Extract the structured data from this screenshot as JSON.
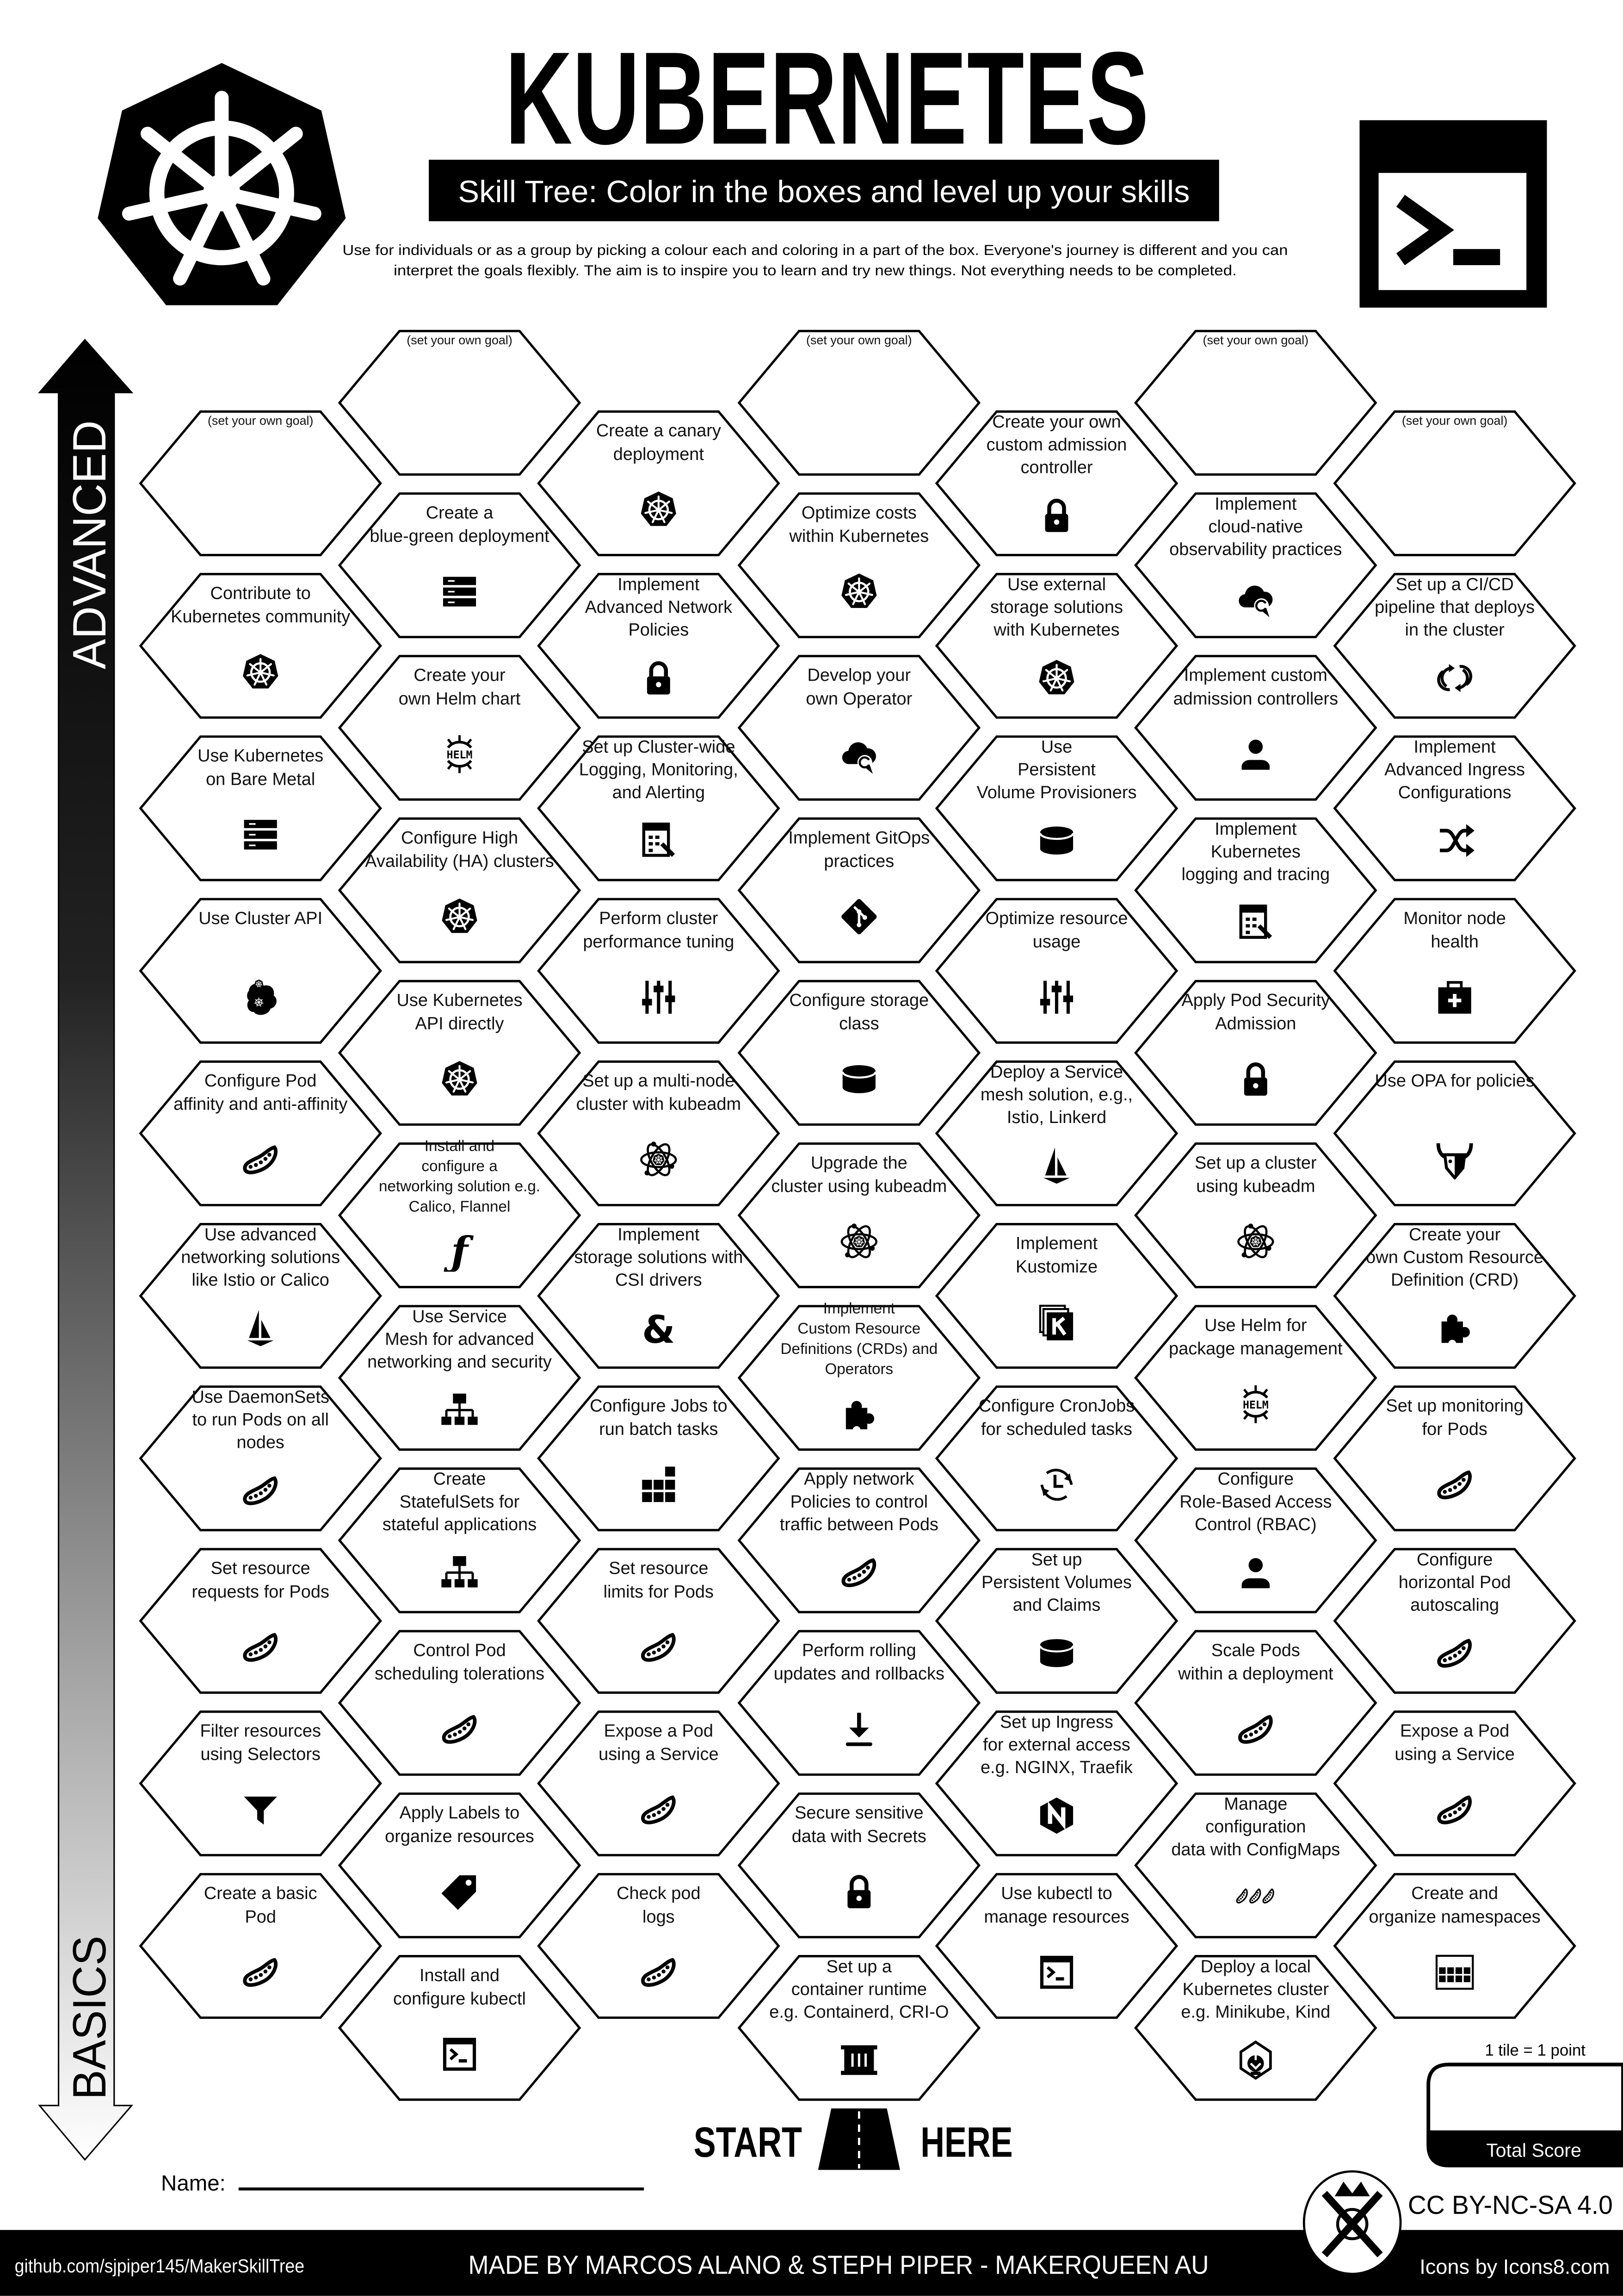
{
  "header": {
    "title": "KUBERNETES",
    "subtitle": "Skill Tree:  Color in the boxes and level up your skills",
    "description": [
      "Use for individuals or as a group by picking a colour each and coloring in a part of the box.  Everyone's journey is different and you can",
      "interpret the goals flexibly.  The aim is to inspire you to learn and try new things. Not everything needs to be completed."
    ],
    "logo_icon": "kubernetes-logo",
    "terminal_icon": "terminal"
  },
  "axis": {
    "top_label": "ADVANCED",
    "bottom_label": "BASICS"
  },
  "grid": {
    "columns": [
      [
        {
          "lines": [
            "(set your own goal)"
          ],
          "icon": "",
          "goal": true
        },
        {
          "lines": [
            "Contribute to",
            "Kubernetes community"
          ],
          "icon": "k8s"
        },
        {
          "lines": [
            "Use Kubernetes",
            "on Bare Metal"
          ],
          "icon": "server"
        },
        {
          "lines": [
            "Use Cluster API"
          ],
          "icon": "clusterapi"
        },
        {
          "lines": [
            "Configure Pod",
            "affinity and anti-affinity"
          ],
          "icon": "pea"
        },
        {
          "lines": [
            "Use advanced",
            "networking solutions",
            "like Istio or Calico"
          ],
          "icon": "sail"
        },
        {
          "lines": [
            "Use DaemonSets",
            "to run Pods on all",
            "nodes"
          ],
          "icon": "pea"
        },
        {
          "lines": [
            "Set resource",
            "requests for Pods"
          ],
          "icon": "pea"
        },
        {
          "lines": [
            "Filter resources",
            "using Selectors"
          ],
          "icon": "funnel"
        },
        {
          "lines": [
            "Create a basic",
            "Pod"
          ],
          "icon": "pea"
        }
      ],
      [
        {
          "lines": [
            "(set your own goal)"
          ],
          "icon": "",
          "goal": true
        },
        {
          "lines": [
            "Create a",
            "blue-green deployment"
          ],
          "icon": "server"
        },
        {
          "lines": [
            "Create your",
            "own Helm chart"
          ],
          "icon": "helm"
        },
        {
          "lines": [
            "Configure High",
            "Availability (HA) clusters"
          ],
          "icon": "k8s"
        },
        {
          "lines": [
            "Use Kubernetes",
            "API directly"
          ],
          "icon": "k8s"
        },
        {
          "lines": [
            "Install and",
            "configure a",
            "networking solution e.g.",
            "Calico, Flannel"
          ],
          "icon": "flannel"
        },
        {
          "lines": [
            "Use Service",
            "Mesh for advanced",
            "networking and security"
          ],
          "icon": "hierarchy"
        },
        {
          "lines": [
            "Create",
            "StatefulSets for",
            "stateful applications"
          ],
          "icon": "hierarchy"
        },
        {
          "lines": [
            "Control Pod",
            "scheduling tolerations"
          ],
          "icon": "pea"
        },
        {
          "lines": [
            "Apply Labels to",
            "organize resources"
          ],
          "icon": "tag"
        },
        {
          "lines": [
            "Install and",
            "configure kubectl"
          ],
          "icon": "terminal"
        }
      ],
      [
        {
          "lines": [
            "Create a canary",
            "deployment"
          ],
          "icon": "k8s"
        },
        {
          "lines": [
            "Implement",
            "Advanced Network",
            "Policies"
          ],
          "icon": "lock"
        },
        {
          "lines": [
            "Set up Cluster-wide",
            "Logging, Monitoring,",
            "and Alerting"
          ],
          "icon": "report"
        },
        {
          "lines": [
            "Perform cluster",
            "performance tuning"
          ],
          "icon": "sliders"
        },
        {
          "lines": [
            "Set up a multi-node",
            "cluster with kubeadm"
          ],
          "icon": "atom"
        },
        {
          "lines": [
            "Implement",
            "storage solutions with",
            "CSI drivers"
          ],
          "icon": "ceph"
        },
        {
          "lines": [
            "Configure Jobs to",
            "run batch tasks"
          ],
          "icon": "blocks"
        },
        {
          "lines": [
            "Set resource",
            "limits for Pods"
          ],
          "icon": "pea"
        },
        {
          "lines": [
            "Expose a Pod",
            "using a Service"
          ],
          "icon": "pea"
        },
        {
          "lines": [
            "Check pod",
            "logs"
          ],
          "icon": "pea"
        }
      ],
      [
        {
          "lines": [
            "(set your own goal)"
          ],
          "icon": "",
          "goal": true
        },
        {
          "lines": [
            "Optimize costs",
            "within Kubernetes"
          ],
          "icon": "k8s"
        },
        {
          "lines": [
            "Develop your",
            "own Operator"
          ],
          "icon": "cloud"
        },
        {
          "lines": [
            "Implement GitOps",
            "practices"
          ],
          "icon": "git"
        },
        {
          "lines": [
            "Configure storage",
            "class"
          ],
          "icon": "db"
        },
        {
          "lines": [
            "Upgrade the",
            "cluster using kubeadm"
          ],
          "icon": "atom"
        },
        {
          "lines": [
            "Implement",
            "Custom Resource",
            "Definitions (CRDs) and",
            "Operators"
          ],
          "icon": "puzzle"
        },
        {
          "lines": [
            "Apply network",
            "Policies to control",
            "traffic between Pods"
          ],
          "icon": "pea"
        },
        {
          "lines": [
            "Perform rolling",
            "updates and rollbacks"
          ],
          "icon": "download"
        },
        {
          "lines": [
            "Secure sensitive",
            "data with Secrets"
          ],
          "icon": "lock"
        },
        {
          "lines": [
            "Set up a",
            "container runtime",
            "e.g. Containerd, CRI-O"
          ],
          "icon": "container"
        }
      ],
      [
        {
          "lines": [
            "Create your own",
            "custom admission",
            "controller"
          ],
          "icon": "lock"
        },
        {
          "lines": [
            "Use external",
            "storage solutions",
            "with Kubernetes"
          ],
          "icon": "k8s"
        },
        {
          "lines": [
            "Use",
            "Persistent",
            "Volume Provisioners"
          ],
          "icon": "db"
        },
        {
          "lines": [
            "Optimize resource",
            "usage"
          ],
          "icon": "sliders"
        },
        {
          "lines": [
            "Deploy a Service",
            "mesh solution, e.g.,",
            "Istio, Linkerd"
          ],
          "icon": "sail"
        },
        {
          "lines": [
            "Implement",
            "Kustomize"
          ],
          "icon": "kustomize"
        },
        {
          "lines": [
            "Configure CronJobs",
            "for scheduled tasks"
          ],
          "icon": "clock"
        },
        {
          "lines": [
            "Set up",
            "Persistent Volumes",
            "and Claims"
          ],
          "icon": "db"
        },
        {
          "lines": [
            "Set up Ingress",
            "for external access",
            "e.g. NGINX, Traefik"
          ],
          "icon": "nginx"
        },
        {
          "lines": [
            "Use kubectl to",
            "manage resources"
          ],
          "icon": "terminal"
        }
      ],
      [
        {
          "lines": [
            "(set your own goal)"
          ],
          "icon": "",
          "goal": true
        },
        {
          "lines": [
            "Implement",
            "cloud-native",
            "observability practices"
          ],
          "icon": "cloud"
        },
        {
          "lines": [
            "Implement custom",
            "admission controllers"
          ],
          "icon": "user"
        },
        {
          "lines": [
            "Implement",
            "Kubernetes",
            "logging and tracing"
          ],
          "icon": "report"
        },
        {
          "lines": [
            "Apply Pod Security",
            "Admission"
          ],
          "icon": "lock"
        },
        {
          "lines": [
            "Set up a cluster",
            "using kubeadm"
          ],
          "icon": "atom"
        },
        {
          "lines": [
            "Use Helm for",
            "package management"
          ],
          "icon": "helm"
        },
        {
          "lines": [
            "Configure",
            "Role-Based Access",
            "Control (RBAC)"
          ],
          "icon": "user"
        },
        {
          "lines": [
            "Scale Pods",
            "within a deployment"
          ],
          "icon": "pea"
        },
        {
          "lines": [
            "Manage",
            "configuration",
            "data with ConfigMaps"
          ],
          "icon": "peas3"
        },
        {
          "lines": [
            "Deploy a local",
            "Kubernetes cluster",
            "e.g. Minikube, Kind"
          ],
          "icon": "minikube"
        }
      ],
      [
        {
          "lines": [
            "(set your own goal)"
          ],
          "icon": "",
          "goal": true
        },
        {
          "lines": [
            "Set up a CI/CD",
            "pipeline that deploys",
            "in the cluster"
          ],
          "icon": "sync"
        },
        {
          "lines": [
            "Implement",
            "Advanced Ingress",
            "Configurations"
          ],
          "icon": "shuffle"
        },
        {
          "lines": [
            "Monitor node",
            "health"
          ],
          "icon": "firstaid"
        },
        {
          "lines": [
            "Use OPA for policies"
          ],
          "icon": "opa"
        },
        {
          "lines": [
            "Create your",
            "own Custom Resource",
            "Definition (CRD)"
          ],
          "icon": "puzzle"
        },
        {
          "lines": [
            "Set up monitoring",
            "for Pods"
          ],
          "icon": "pea"
        },
        {
          "lines": [
            "Configure",
            "horizontal Pod",
            "autoscaling"
          ],
          "icon": "pea"
        },
        {
          "lines": [
            "Expose a Pod",
            "using a Service"
          ],
          "icon": "pea"
        },
        {
          "lines": [
            "Create and",
            "organize namespaces"
          ],
          "icon": "grid"
        }
      ]
    ]
  },
  "start": {
    "left": "START",
    "right": "HERE",
    "icon": "road"
  },
  "name_label": "Name:",
  "score": {
    "note": "1 tile = 1 point",
    "label": "Total Score"
  },
  "license": "CC BY-NC-SA 4.0",
  "footer": {
    "left": "github.com/sjpiper145/MakerSkillTree",
    "center": "MADE BY MARCOS ALANO & STEPH PIPER  -  MAKERQUEEN AU",
    "right": "Icons by Icons8.com"
  },
  "colors": {
    "ink": "#000000",
    "paper": "#ffffff"
  }
}
